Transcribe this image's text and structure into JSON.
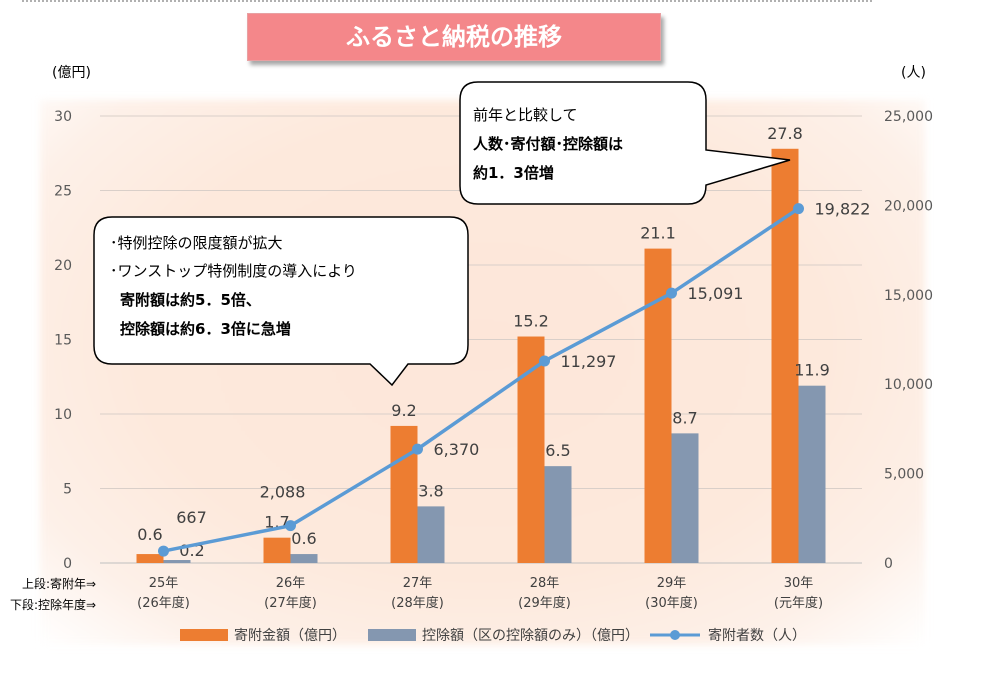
{
  "title": "ふるさと納税の推移",
  "left_axis_unit": "(億円)",
  "right_axis_unit": "(人)",
  "row_label_top": "上段:寄附年⇒",
  "row_label_bottom": "下段:控除年度⇒",
  "callouts": [
    {
      "lines": [
        "前年と比較して",
        "人数･寄付額･控除額は",
        "約1．3倍増"
      ]
    },
    {
      "lines": [
        "･特例控除の限度額が拡大",
        "･ワンストップ特例制度の導入により",
        "寄附額は約5．5倍、",
        "控除額は約6．3倍に急増"
      ]
    }
  ],
  "chart_data": {
    "type": "bar",
    "categories": [
      "25年",
      "26年",
      "27年",
      "28年",
      "29年",
      "30年"
    ],
    "categories_sub": [
      "(26年度)",
      "(27年度)",
      "(28年度)",
      "(29年度)",
      "(30年度)",
      "(元年度)"
    ],
    "y_left": {
      "ticks": [
        "0",
        "5",
        "10",
        "15",
        "20",
        "25",
        "30"
      ],
      "lim": [
        0,
        30
      ]
    },
    "y_right": {
      "ticks": [
        "0",
        "5,000",
        "10,000",
        "15,000",
        "20,000",
        "25,000"
      ],
      "lim": [
        0,
        25000
      ]
    },
    "series": [
      {
        "name": "寄附金額（億円）",
        "type": "bar",
        "axis": "left",
        "color": "#ed7d31",
        "values": [
          0.6,
          1.7,
          9.2,
          15.2,
          21.1,
          27.8
        ],
        "labels": [
          "0.6",
          "1.7",
          "9.2",
          "15.2",
          "21.1",
          "27.8"
        ]
      },
      {
        "name": "控除額（区の控除額のみ）（億円）",
        "type": "bar",
        "axis": "left",
        "color": "#8497b0",
        "values": [
          0.2,
          0.6,
          3.8,
          6.5,
          8.7,
          11.9
        ],
        "labels": [
          "0.2",
          "0.6",
          "3.8",
          "6.5",
          "8.7",
          "11.9"
        ]
      },
      {
        "name": "寄附者数（人）",
        "type": "line",
        "axis": "right",
        "color": "#5b9bd5",
        "values": [
          667,
          2088,
          6370,
          11297,
          15091,
          19822
        ],
        "labels": [
          "667",
          "2,088",
          "6,370",
          "11,297",
          "15,091",
          "19,822"
        ]
      }
    ]
  }
}
